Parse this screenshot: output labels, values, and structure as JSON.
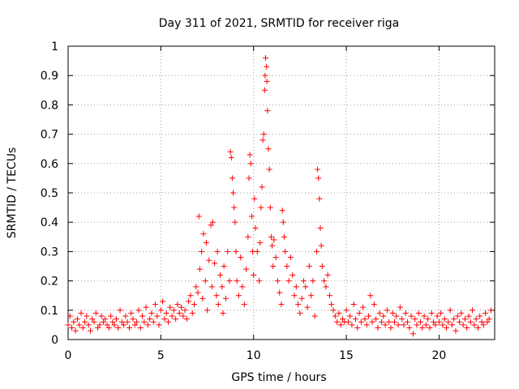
{
  "chart_data": {
    "type": "scatter",
    "title": "Day 311 of 2021, SRMTID for receiver riga",
    "xlabel": "GPS time / hours",
    "ylabel": "SRMTID / TECUs",
    "xlim": [
      0,
      23
    ],
    "ylim": [
      0,
      1
    ],
    "xticks": [
      0,
      5,
      10,
      15,
      20
    ],
    "yticks": [
      0,
      0.1,
      0.2,
      0.3,
      0.4,
      0.5,
      0.6,
      0.7,
      0.8,
      0.9,
      1
    ],
    "xtick_labels": [
      "0",
      "5",
      "10",
      "15",
      "20"
    ],
    "ytick_labels": [
      "0",
      "0.1",
      "0.2",
      "0.3",
      "0.4",
      "0.5",
      "0.6",
      "0.7",
      "0.8",
      "0.9",
      "1"
    ],
    "grid": true,
    "marker": "+",
    "color": "#ff0000",
    "series": [
      {
        "name": "SRMTID",
        "points": [
          [
            0.0,
            0.05
          ],
          [
            0.1,
            0.08
          ],
          [
            0.2,
            0.04
          ],
          [
            0.3,
            0.06
          ],
          [
            0.4,
            0.03
          ],
          [
            0.5,
            0.07
          ],
          [
            0.6,
            0.05
          ],
          [
            0.7,
            0.09
          ],
          [
            0.8,
            0.04
          ],
          [
            0.9,
            0.06
          ],
          [
            1.0,
            0.08
          ],
          [
            1.1,
            0.05
          ],
          [
            1.2,
            0.03
          ],
          [
            1.3,
            0.07
          ],
          [
            1.4,
            0.06
          ],
          [
            1.5,
            0.09
          ],
          [
            1.6,
            0.04
          ],
          [
            1.7,
            0.05
          ],
          [
            1.8,
            0.08
          ],
          [
            1.9,
            0.06
          ],
          [
            2.0,
            0.07
          ],
          [
            2.1,
            0.05
          ],
          [
            2.2,
            0.04
          ],
          [
            2.3,
            0.08
          ],
          [
            2.4,
            0.06
          ],
          [
            2.5,
            0.05
          ],
          [
            2.6,
            0.07
          ],
          [
            2.7,
            0.04
          ],
          [
            2.8,
            0.1
          ],
          [
            2.9,
            0.06
          ],
          [
            3.0,
            0.05
          ],
          [
            3.1,
            0.08
          ],
          [
            3.2,
            0.06
          ],
          [
            3.3,
            0.04
          ],
          [
            3.4,
            0.09
          ],
          [
            3.5,
            0.07
          ],
          [
            3.6,
            0.05
          ],
          [
            3.7,
            0.06
          ],
          [
            3.8,
            0.1
          ],
          [
            3.9,
            0.04
          ],
          [
            4.0,
            0.08
          ],
          [
            4.1,
            0.06
          ],
          [
            4.2,
            0.11
          ],
          [
            4.3,
            0.05
          ],
          [
            4.4,
            0.07
          ],
          [
            4.5,
            0.09
          ],
          [
            4.6,
            0.06
          ],
          [
            4.7,
            0.12
          ],
          [
            4.8,
            0.08
          ],
          [
            4.9,
            0.05
          ],
          [
            5.0,
            0.1
          ],
          [
            5.1,
            0.13
          ],
          [
            5.2,
            0.07
          ],
          [
            5.3,
            0.09
          ],
          [
            5.4,
            0.06
          ],
          [
            5.5,
            0.11
          ],
          [
            5.6,
            0.08
          ],
          [
            5.7,
            0.1
          ],
          [
            5.8,
            0.07
          ],
          [
            5.9,
            0.12
          ],
          [
            6.0,
            0.09
          ],
          [
            6.1,
            0.11
          ],
          [
            6.2,
            0.08
          ],
          [
            6.3,
            0.1
          ],
          [
            6.4,
            0.07
          ],
          [
            6.5,
            0.13
          ],
          [
            6.6,
            0.15
          ],
          [
            6.7,
            0.09
          ],
          [
            6.8,
            0.12
          ],
          [
            6.9,
            0.18
          ],
          [
            7.0,
            0.16
          ],
          [
            7.05,
            0.42
          ],
          [
            7.1,
            0.24
          ],
          [
            7.2,
            0.3
          ],
          [
            7.25,
            0.14
          ],
          [
            7.3,
            0.36
          ],
          [
            7.4,
            0.2
          ],
          [
            7.45,
            0.33
          ],
          [
            7.5,
            0.1
          ],
          [
            7.6,
            0.27
          ],
          [
            7.7,
            0.39
          ],
          [
            7.75,
            0.18
          ],
          [
            7.8,
            0.4
          ],
          [
            7.9,
            0.26
          ],
          [
            8.0,
            0.15
          ],
          [
            8.05,
            0.3
          ],
          [
            8.1,
            0.12
          ],
          [
            8.2,
            0.22
          ],
          [
            8.3,
            0.18
          ],
          [
            8.35,
            0.09
          ],
          [
            8.4,
            0.25
          ],
          [
            8.5,
            0.14
          ],
          [
            8.6,
            0.3
          ],
          [
            8.7,
            0.2
          ],
          [
            8.75,
            0.64
          ],
          [
            8.8,
            0.62
          ],
          [
            8.85,
            0.55
          ],
          [
            8.9,
            0.5
          ],
          [
            8.95,
            0.45
          ],
          [
            9.0,
            0.4
          ],
          [
            9.05,
            0.3
          ],
          [
            9.1,
            0.2
          ],
          [
            9.2,
            0.15
          ],
          [
            9.3,
            0.28
          ],
          [
            9.4,
            0.18
          ],
          [
            9.5,
            0.12
          ],
          [
            9.6,
            0.24
          ],
          [
            9.7,
            0.35
          ],
          [
            9.75,
            0.55
          ],
          [
            9.8,
            0.63
          ],
          [
            9.85,
            0.6
          ],
          [
            9.9,
            0.42
          ],
          [
            9.95,
            0.3
          ],
          [
            10.0,
            0.22
          ],
          [
            10.05,
            0.48
          ],
          [
            10.1,
            0.38
          ],
          [
            10.2,
            0.3
          ],
          [
            10.3,
            0.2
          ],
          [
            10.35,
            0.33
          ],
          [
            10.4,
            0.45
          ],
          [
            10.45,
            0.52
          ],
          [
            10.5,
            0.68
          ],
          [
            10.55,
            0.7
          ],
          [
            10.6,
            0.85
          ],
          [
            10.62,
            0.9
          ],
          [
            10.65,
            0.96
          ],
          [
            10.7,
            0.93
          ],
          [
            10.72,
            0.88
          ],
          [
            10.75,
            0.78
          ],
          [
            10.8,
            0.65
          ],
          [
            10.85,
            0.58
          ],
          [
            10.9,
            0.45
          ],
          [
            10.95,
            0.35
          ],
          [
            11.0,
            0.32
          ],
          [
            11.05,
            0.25
          ],
          [
            11.1,
            0.34
          ],
          [
            11.2,
            0.28
          ],
          [
            11.3,
            0.2
          ],
          [
            11.4,
            0.16
          ],
          [
            11.5,
            0.12
          ],
          [
            11.55,
            0.44
          ],
          [
            11.6,
            0.4
          ],
          [
            11.65,
            0.35
          ],
          [
            11.7,
            0.3
          ],
          [
            11.8,
            0.25
          ],
          [
            11.9,
            0.2
          ],
          [
            12.0,
            0.28
          ],
          [
            12.1,
            0.22
          ],
          [
            12.2,
            0.15
          ],
          [
            12.3,
            0.18
          ],
          [
            12.4,
            0.12
          ],
          [
            12.5,
            0.09
          ],
          [
            12.6,
            0.14
          ],
          [
            12.7,
            0.2
          ],
          [
            12.8,
            0.18
          ],
          [
            12.9,
            0.11
          ],
          [
            13.0,
            0.25
          ],
          [
            13.1,
            0.15
          ],
          [
            13.2,
            0.2
          ],
          [
            13.3,
            0.08
          ],
          [
            13.4,
            0.3
          ],
          [
            13.45,
            0.58
          ],
          [
            13.5,
            0.55
          ],
          [
            13.55,
            0.48
          ],
          [
            13.6,
            0.38
          ],
          [
            13.65,
            0.32
          ],
          [
            13.7,
            0.25
          ],
          [
            13.8,
            0.2
          ],
          [
            13.9,
            0.18
          ],
          [
            14.0,
            0.22
          ],
          [
            14.1,
            0.15
          ],
          [
            14.2,
            0.12
          ],
          [
            14.3,
            0.1
          ],
          [
            14.4,
            0.08
          ],
          [
            14.5,
            0.06
          ],
          [
            14.6,
            0.09
          ],
          [
            14.7,
            0.05
          ],
          [
            14.8,
            0.07
          ],
          [
            14.9,
            0.06
          ],
          [
            15.0,
            0.1
          ],
          [
            15.1,
            0.06
          ],
          [
            15.2,
            0.08
          ],
          [
            15.3,
            0.05
          ],
          [
            15.4,
            0.12
          ],
          [
            15.5,
            0.07
          ],
          [
            15.6,
            0.04
          ],
          [
            15.7,
            0.09
          ],
          [
            15.8,
            0.06
          ],
          [
            15.9,
            0.11
          ],
          [
            16.0,
            0.07
          ],
          [
            16.1,
            0.05
          ],
          [
            16.2,
            0.08
          ],
          [
            16.3,
            0.15
          ],
          [
            16.4,
            0.06
          ],
          [
            16.5,
            0.12
          ],
          [
            16.6,
            0.07
          ],
          [
            16.7,
            0.04
          ],
          [
            16.8,
            0.09
          ],
          [
            16.9,
            0.06
          ],
          [
            17.0,
            0.08
          ],
          [
            17.1,
            0.05
          ],
          [
            17.2,
            0.1
          ],
          [
            17.3,
            0.06
          ],
          [
            17.4,
            0.04
          ],
          [
            17.5,
            0.09
          ],
          [
            17.6,
            0.06
          ],
          [
            17.7,
            0.08
          ],
          [
            17.8,
            0.05
          ],
          [
            17.9,
            0.11
          ],
          [
            18.0,
            0.07
          ],
          [
            18.1,
            0.05
          ],
          [
            18.2,
            0.09
          ],
          [
            18.3,
            0.06
          ],
          [
            18.4,
            0.04
          ],
          [
            18.5,
            0.08
          ],
          [
            18.6,
            0.02
          ],
          [
            18.7,
            0.07
          ],
          [
            18.8,
            0.05
          ],
          [
            18.9,
            0.09
          ],
          [
            19.0,
            0.06
          ],
          [
            19.1,
            0.04
          ],
          [
            19.2,
            0.08
          ],
          [
            19.3,
            0.05
          ],
          [
            19.4,
            0.07
          ],
          [
            19.5,
            0.04
          ],
          [
            19.6,
            0.09
          ],
          [
            19.7,
            0.06
          ],
          [
            19.8,
            0.05
          ],
          [
            19.9,
            0.08
          ],
          [
            20.0,
            0.06
          ],
          [
            20.1,
            0.09
          ],
          [
            20.2,
            0.05
          ],
          [
            20.3,
            0.07
          ],
          [
            20.4,
            0.04
          ],
          [
            20.5,
            0.06
          ],
          [
            20.6,
            0.1
          ],
          [
            20.7,
            0.05
          ],
          [
            20.8,
            0.07
          ],
          [
            20.9,
            0.03
          ],
          [
            21.0,
            0.08
          ],
          [
            21.1,
            0.06
          ],
          [
            21.2,
            0.09
          ],
          [
            21.3,
            0.05
          ],
          [
            21.4,
            0.07
          ],
          [
            21.5,
            0.04
          ],
          [
            21.6,
            0.08
          ],
          [
            21.7,
            0.06
          ],
          [
            21.8,
            0.1
          ],
          [
            21.9,
            0.05
          ],
          [
            22.0,
            0.07
          ],
          [
            22.1,
            0.04
          ],
          [
            22.2,
            0.08
          ],
          [
            22.3,
            0.06
          ],
          [
            22.4,
            0.05
          ],
          [
            22.5,
            0.09
          ],
          [
            22.6,
            0.06
          ],
          [
            22.7,
            0.07
          ],
          [
            22.8,
            0.1
          ]
        ]
      }
    ]
  }
}
